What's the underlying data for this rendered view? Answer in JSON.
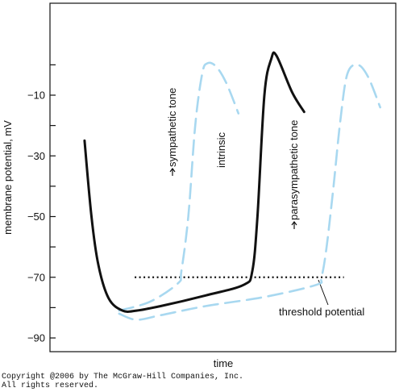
{
  "chart_data": {
    "type": "line",
    "xlabel": "time",
    "ylabel": "membrane potential, mV",
    "ylim": [
      -93,
      -1
    ],
    "yticks": [
      -10,
      -30,
      -50,
      -70,
      -90
    ],
    "ytick_labels": [
      "−10",
      "−30",
      "−50",
      "−70",
      "−90"
    ],
    "grid": false,
    "threshold": {
      "value": -70,
      "label": "threshold potential"
    },
    "series": [
      {
        "name": "intrinsic",
        "color": "#111111",
        "style": "solid",
        "points": [
          [
            0.1,
            -25
          ],
          [
            0.12,
            -50
          ],
          [
            0.14,
            -66
          ],
          [
            0.17,
            -77
          ],
          [
            0.21,
            -81
          ],
          [
            0.25,
            -81
          ],
          [
            0.32,
            -79.5
          ],
          [
            0.45,
            -76
          ],
          [
            0.56,
            -72.5
          ],
          [
            0.585,
            -68
          ],
          [
            0.6,
            -50
          ],
          [
            0.62,
            -10
          ],
          [
            0.64,
            2
          ],
          [
            0.655,
            3
          ],
          [
            0.7,
            -9
          ],
          [
            0.735,
            -15.5
          ]
        ]
      },
      {
        "name": "sympathetic tone",
        "label_prefix": "↑",
        "color": "#a8d8f0",
        "style": "dashed",
        "points": [
          [
            0.2,
            -81
          ],
          [
            0.29,
            -78
          ],
          [
            0.37,
            -72
          ],
          [
            0.38,
            -68
          ],
          [
            0.4,
            -50
          ],
          [
            0.42,
            -20
          ],
          [
            0.44,
            -3
          ],
          [
            0.455,
            0.5
          ],
          [
            0.48,
            -0.5
          ],
          [
            0.51,
            -6
          ],
          [
            0.545,
            -16
          ]
        ]
      },
      {
        "name": "parasympathetic tone",
        "label_prefix": "↓",
        "color": "#a8d8f0",
        "style": "dashed",
        "points": [
          [
            0.2,
            -82
          ],
          [
            0.25,
            -84
          ],
          [
            0.32,
            -82.5
          ],
          [
            0.45,
            -79.5
          ],
          [
            0.62,
            -76.5
          ],
          [
            0.77,
            -72.5
          ],
          [
            0.785,
            -70
          ],
          [
            0.8,
            -60
          ],
          [
            0.82,
            -40
          ],
          [
            0.84,
            -18
          ],
          [
            0.86,
            -3
          ],
          [
            0.89,
            0
          ],
          [
            0.92,
            -4
          ],
          [
            0.955,
            -14
          ]
        ]
      }
    ],
    "annotations": [
      {
        "text": "intrinsic"
      },
      {
        "text": "sympathetic tone",
        "prefix": "↑"
      },
      {
        "text": "parasympathetic tone",
        "prefix": "↓"
      },
      {
        "text": "threshold potential"
      }
    ]
  },
  "copyright": {
    "line1": "Copyright @2006 by The McGraw-Hill Companies, Inc.",
    "line2": "All rights reserved."
  }
}
